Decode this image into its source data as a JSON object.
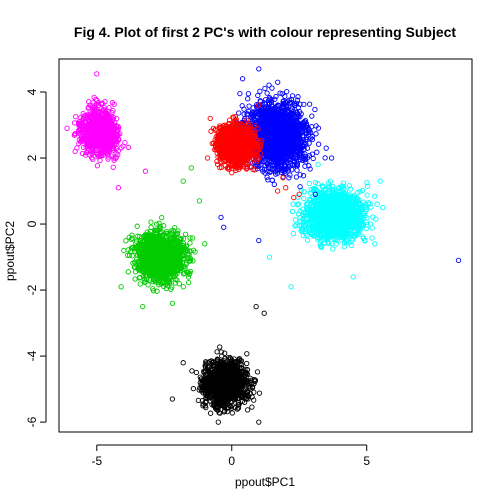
{
  "chart_data": {
    "type": "scatter",
    "title": "Fig 4. Plot of first 2 PC's with colour representing Subject",
    "xlabel": "ppout$PC1",
    "ylabel": "ppout$PC2",
    "xlim": [
      -6.4,
      8.9
    ],
    "ylim": [
      -6.3,
      5.0
    ],
    "x_ticks": [
      -5,
      0,
      5
    ],
    "x_tick_labels": [
      "-5",
      "0",
      "5"
    ],
    "y_ticks": [
      -6,
      -4,
      -2,
      0,
      2,
      4
    ],
    "y_tick_labels": [
      "-6",
      "-4",
      "-2",
      "0",
      "2",
      "4"
    ],
    "marker": "open-circle",
    "legend": "none",
    "grid": false,
    "series": [
      {
        "color": "#ff00ff",
        "cluster": {
          "cx": -4.9,
          "cy": 2.8,
          "sx": 0.55,
          "sy": 0.55,
          "n": 900
        },
        "extremes": [
          [
            -6.1,
            2.9
          ],
          [
            -5.0,
            4.55
          ],
          [
            -3.2,
            1.6
          ],
          [
            -4.2,
            1.1
          ],
          [
            -5.8,
            2.2
          ]
        ]
      },
      {
        "color": "#00cc00",
        "cluster": {
          "cx": -2.6,
          "cy": -1.0,
          "sx": 0.75,
          "sy": 0.6,
          "n": 1300
        },
        "extremes": [
          [
            -4.1,
            -1.9
          ],
          [
            -4.0,
            -0.8
          ],
          [
            -1.5,
            1.7
          ],
          [
            -1.8,
            1.3
          ],
          [
            -1.2,
            0.7
          ],
          [
            -3.3,
            -2.5
          ],
          [
            -2.2,
            -2.4
          ],
          [
            -1.0,
            -0.6
          ]
        ]
      },
      {
        "color": "#000000",
        "cluster": {
          "cx": -0.2,
          "cy": -4.8,
          "sx": 0.65,
          "sy": 0.55,
          "n": 1400
        },
        "extremes": [
          [
            0.9,
            -2.5
          ],
          [
            1.2,
            -2.7
          ],
          [
            -2.2,
            -5.3
          ],
          [
            -0.5,
            -6.0
          ],
          [
            1.0,
            -6.0
          ],
          [
            -1.8,
            -4.2
          ]
        ]
      },
      {
        "color": "#00ffff",
        "cluster": {
          "cx": 3.8,
          "cy": 0.3,
          "sx": 0.9,
          "sy": 0.6,
          "n": 1400
        },
        "extremes": [
          [
            1.4,
            -1.0
          ],
          [
            2.2,
            -1.9
          ],
          [
            5.5,
            1.3
          ],
          [
            5.3,
            -0.6
          ],
          [
            3.2,
            1.8
          ],
          [
            4.5,
            -1.6
          ]
        ]
      },
      {
        "color": "#0000ff",
        "cluster": {
          "cx": 1.7,
          "cy": 2.7,
          "sx": 0.9,
          "sy": 0.8,
          "n": 1700
        },
        "extremes": [
          [
            1.0,
            4.7
          ],
          [
            0.4,
            4.4
          ],
          [
            3.5,
            2.3
          ],
          [
            3.7,
            2.0
          ],
          [
            8.4,
            -1.1
          ],
          [
            -0.4,
            0.2
          ],
          [
            -0.3,
            -0.1
          ],
          [
            1.0,
            -0.5
          ],
          [
            3.1,
            0.9
          ]
        ]
      },
      {
        "color": "#ff0000",
        "cluster": {
          "cx": 0.2,
          "cy": 2.4,
          "sx": 0.55,
          "sy": 0.5,
          "n": 1300
        },
        "extremes": [
          [
            -0.8,
            3.2
          ],
          [
            -0.9,
            2.0
          ],
          [
            1.0,
            3.6
          ],
          [
            2.0,
            1.1
          ],
          [
            2.3,
            0.8
          ],
          [
            1.9,
            1.4
          ],
          [
            1.7,
            1.0
          ],
          [
            2.5,
            0.9
          ]
        ]
      }
    ]
  }
}
